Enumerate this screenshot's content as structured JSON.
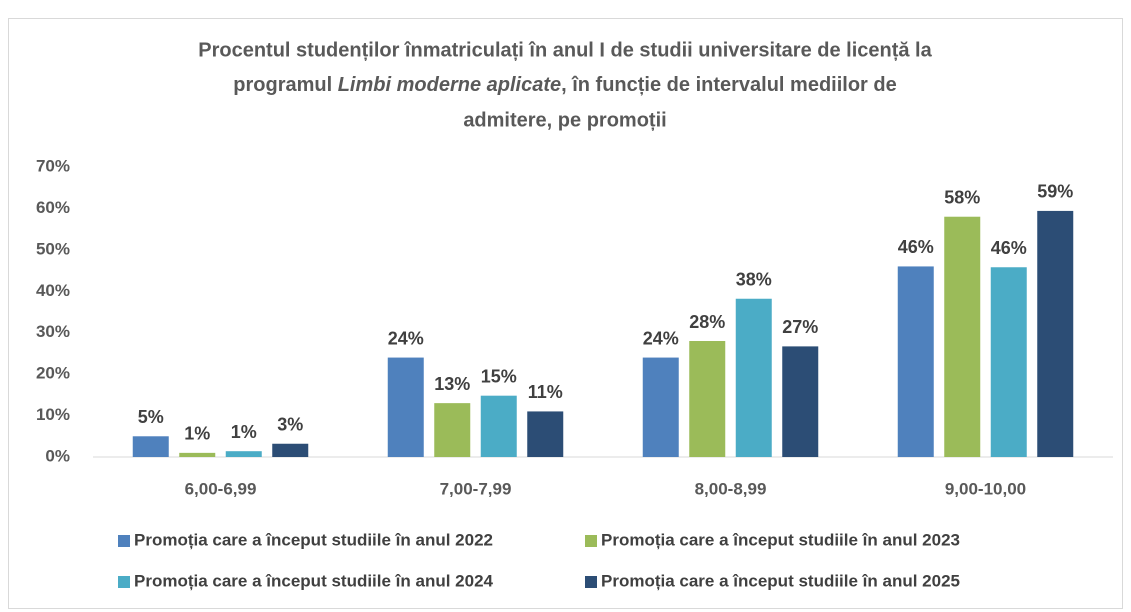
{
  "chart_data": {
    "type": "bar",
    "title": [
      "Procentul studenților înmatriculați în anul I de studii universitare de licență la",
      "programul ",
      "Limbi moderne aplicate",
      ", în funcție de intervalul mediilor de",
      "admitere, pe promoții"
    ],
    "categories": [
      "6,00-6,99",
      "7,00-7,99",
      "8,00-8,99",
      "9,00-10,00"
    ],
    "series": [
      {
        "name": "Promoția care a început studiile în anul 2022",
        "color": "#4f81bd",
        "values": [
          5,
          24,
          24,
          46
        ],
        "value_labels": [
          "5%",
          "24%",
          "24%",
          "46%"
        ]
      },
      {
        "name": "Promoția care a început studiile în anul 2023",
        "color": "#9bbb59",
        "values": [
          1,
          13,
          28,
          58
        ],
        "value_labels": [
          "1%",
          "13%",
          "28%",
          "58%"
        ]
      },
      {
        "name": "Promoția care a început studiile în anul 2024",
        "color": "#4bacc6",
        "values": [
          1.4,
          14.8,
          38.2,
          45.8
        ],
        "value_labels": [
          "1%",
          "15%",
          "38%",
          "46%"
        ]
      },
      {
        "name": "Promoția care a început studiile în anul 2025",
        "color": "#2c4d75",
        "values": [
          3.2,
          11,
          26.7,
          59.4
        ],
        "value_labels": [
          "3%",
          "11%",
          "27%",
          "59%"
        ]
      }
    ],
    "ylim": [
      0,
      70
    ],
    "yticks": [
      {
        "value": 0,
        "label": "0%"
      },
      {
        "value": 10,
        "label": "10%"
      },
      {
        "value": 20,
        "label": "20%"
      },
      {
        "value": 30,
        "label": "30%"
      },
      {
        "value": 40,
        "label": "40%"
      },
      {
        "value": 50,
        "label": "50%"
      },
      {
        "value": 60,
        "label": "60%"
      },
      {
        "value": 70,
        "label": "70%"
      }
    ],
    "grid": false
  }
}
